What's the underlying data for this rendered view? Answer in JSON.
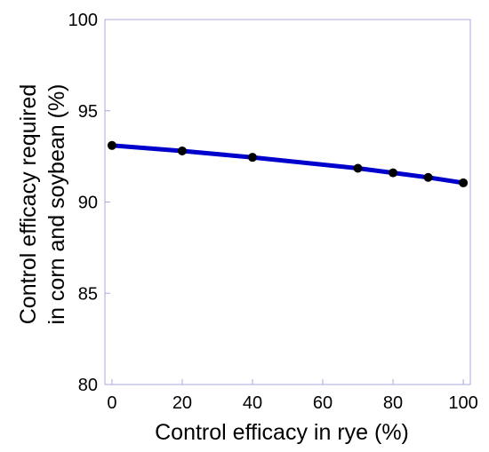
{
  "chart_data": {
    "type": "line",
    "title": "",
    "xlabel": "Control efficacy in rye (%)",
    "ylabel": [
      "Control efficacy required",
      "in corn and soybean (%)"
    ],
    "xlim": [
      -2,
      102
    ],
    "ylim": [
      80,
      100
    ],
    "xticks": [
      0,
      20,
      40,
      60,
      80,
      100
    ],
    "yticks": [
      80,
      85,
      90,
      95,
      100
    ],
    "grid": false,
    "legend": "none",
    "line_color": "#0000cc",
    "marker_color": "#000000",
    "axis_color": "#aaaadd",
    "series": [
      {
        "x": [
          0,
          20,
          40,
          70,
          80,
          90,
          100
        ],
        "y": [
          93.1,
          92.8,
          92.45,
          91.85,
          91.6,
          91.35,
          91.05
        ]
      }
    ]
  }
}
